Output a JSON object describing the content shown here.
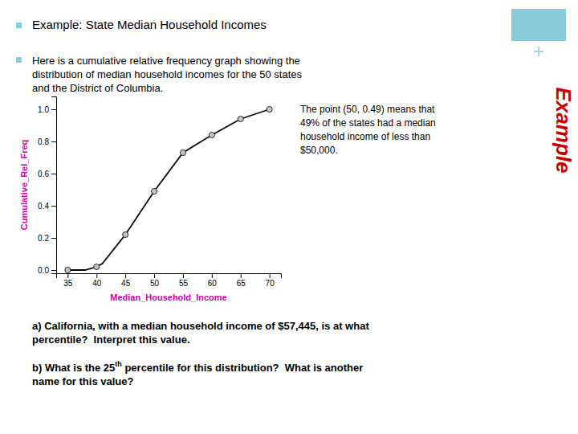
{
  "chart_data": {
    "type": "line",
    "title": "Example:  State Median Household Incomes",
    "x_label": "Median_Household_Income",
    "y_label": "Cumulative_Rel_Freq",
    "series": [
      {
        "type": "line",
        "color": "#000000",
        "x": [
          35,
          38,
          40,
          41,
          45,
          50,
          55,
          60,
          65,
          70
        ],
        "values": [
          0.0,
          0.0,
          0.02,
          0.04,
          0.22,
          0.49,
          0.73,
          0.84,
          0.94,
          1.0
        ]
      },
      {
        "type": "scatter",
        "marker": "circle",
        "color": "#c0c8c0",
        "x": [
          35,
          40,
          45,
          50,
          55,
          60,
          65,
          70
        ],
        "values": [
          0.0,
          0.02,
          0.22,
          0.49,
          0.73,
          0.84,
          0.94,
          1.0
        ]
      }
    ],
    "xlim": [
      33,
      72
    ],
    "ylim": [
      -0.02,
      1.08
    ],
    "xticks": [
      35,
      40,
      45,
      50,
      55,
      60,
      65,
      70
    ],
    "yticks": [
      {
        "value": 0.0,
        "label": "0.0"
      },
      0.2,
      0.4,
      0.6,
      0.8,
      {
        "value": 1.0,
        "label": "1.0"
      }
    ],
    "grid": false,
    "annotations": [
      "Here is a cumulative relative frequency graph showing the",
      "distribution of median household incomes for the 50 states",
      "and the District of Columbia.",
      "The point (50, 0.49) means that",
      "49% of the states had a median",
      "household income of less than",
      "$50,000.",
      "a) California, with a median household income of $57,445, is at what",
      "percentile?  Interpret this value.",
      "b) What is the 25",
      "th",
      " percentile for this distribution?  What is another",
      "name for this value?",
      "Example"
    ]
  }
}
